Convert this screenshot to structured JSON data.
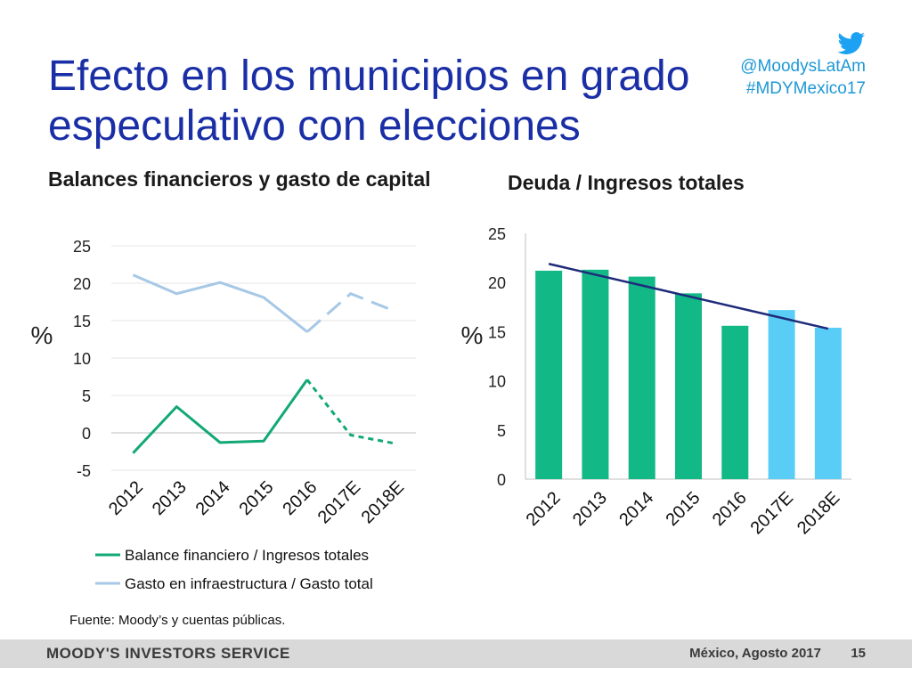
{
  "slide": {
    "title": "Efecto en los municipios en grado especulativo con elecciones",
    "social": {
      "icon": "twitter-bird-icon",
      "handle": "@MoodysLatAm",
      "hashtag": "#MDYMexico17"
    },
    "source": "Fuente: Moody’s y cuentas públicas.",
    "footer": {
      "brand": "MOODY'S INVESTORS SERVICE",
      "place_date": "México, Agosto 2017",
      "page": "15"
    }
  },
  "chart_data": [
    {
      "type": "line",
      "title": "Balances financieros y gasto de capital",
      "ylabel": "%",
      "xlabel": "",
      "categories": [
        "2012",
        "2013",
        "2014",
        "2015",
        "2016",
        "2017E",
        "2018E"
      ],
      "yticks": [
        "-5",
        "0",
        "5",
        "10",
        "15",
        "20",
        "25"
      ],
      "ylim": [
        -5,
        25
      ],
      "grid": true,
      "legend_position": "bottom",
      "projected_from_index": 4,
      "series": [
        {
          "name": "Balance financiero / Ingresos totales",
          "color": "#12a877",
          "values": [
            -2.7,
            3.5,
            -1.3,
            -1.1,
            7.1,
            -0.3,
            -1.4
          ]
        },
        {
          "name": "Gasto en infraestructura / Gasto total",
          "color": "#a6c8e6",
          "values": [
            21.1,
            18.6,
            20.1,
            18.1,
            13.5,
            18.6,
            16.3
          ]
        }
      ]
    },
    {
      "type": "bar",
      "title": "Deuda / Ingresos totales",
      "ylabel": "%",
      "xlabel": "",
      "categories": [
        "2012",
        "2013",
        "2014",
        "2015",
        "2016",
        "2017E",
        "2018E"
      ],
      "yticks": [
        "0",
        "5",
        "10",
        "15",
        "20",
        "25"
      ],
      "ylim": [
        0,
        25
      ],
      "values": [
        21.2,
        21.3,
        20.6,
        18.9,
        15.6,
        17.2,
        15.4
      ],
      "colors": [
        "#12b886",
        "#12b886",
        "#12b886",
        "#12b886",
        "#12b886",
        "#59cdf6",
        "#59cdf6"
      ],
      "trendline": {
        "color": "#1e2b7a",
        "start": 21.9,
        "end": 15.3
      }
    }
  ]
}
